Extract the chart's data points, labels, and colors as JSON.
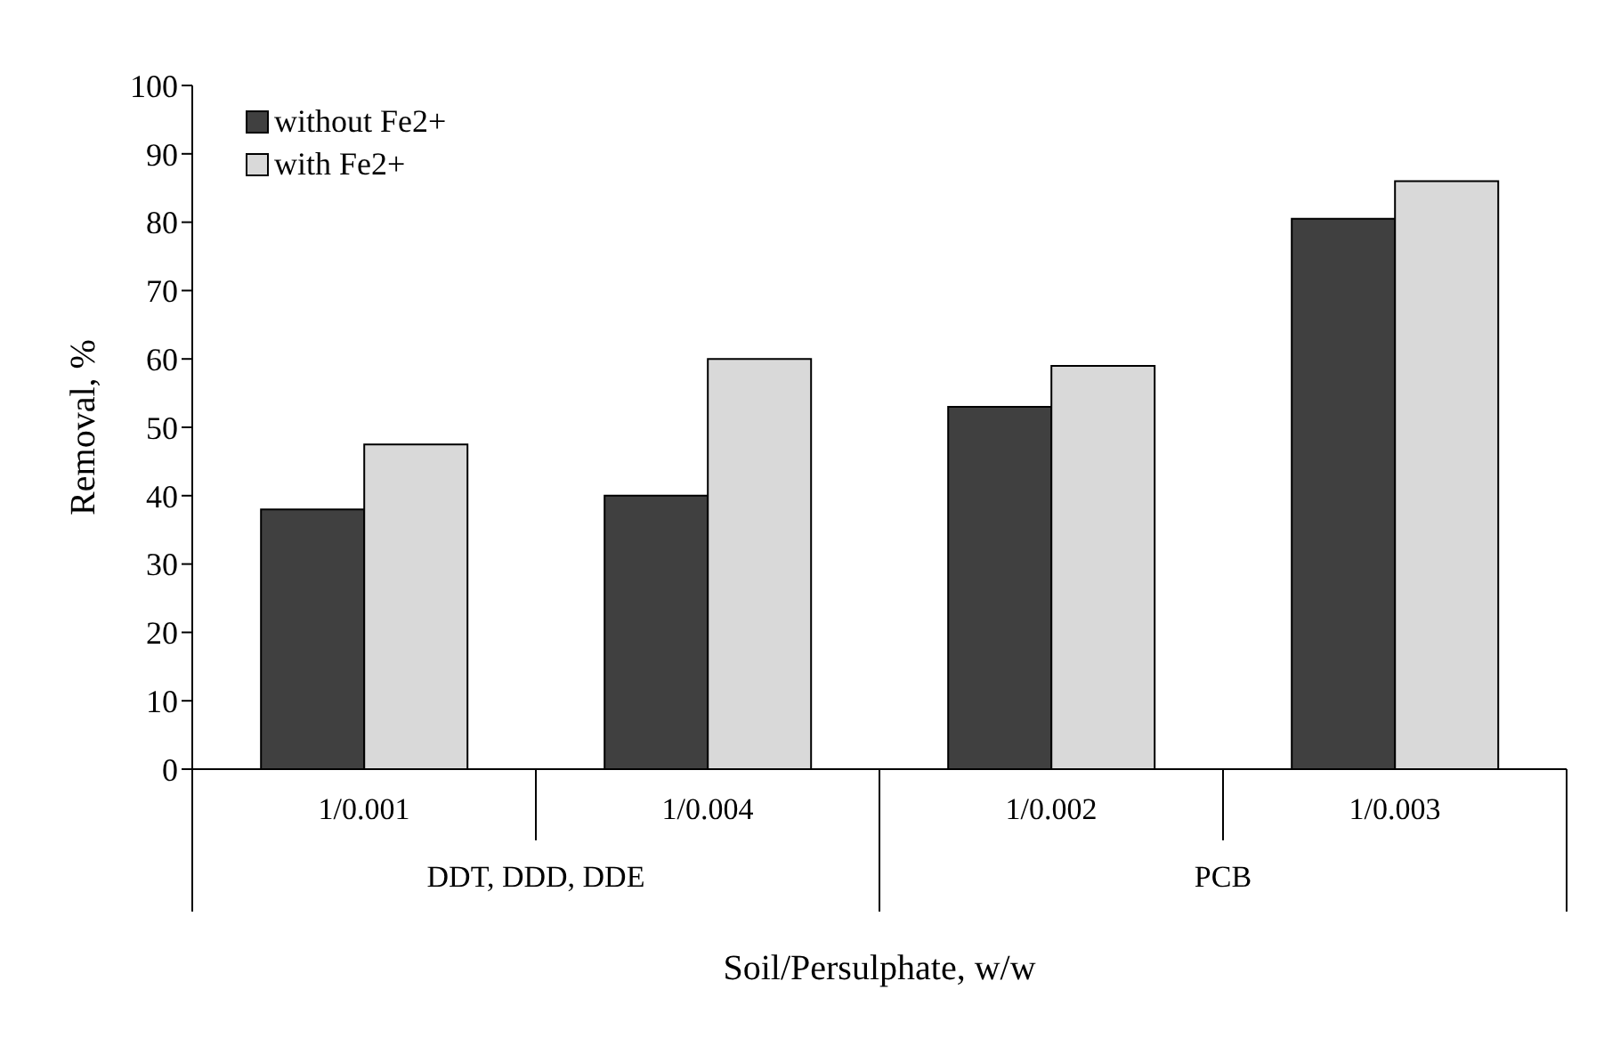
{
  "chart_data": {
    "type": "bar",
    "xlabel": "Soil/Persulphate, w/w",
    "ylabel": "Removal, %",
    "categories": [
      "1/0.001",
      "1/0.004",
      "1/0.002",
      "1/0.003"
    ],
    "series": [
      {
        "name": "without Fe2+",
        "color": "#404040",
        "values": [
          38,
          40,
          53,
          80.5
        ]
      },
      {
        "name": "with Fe2+",
        "color": "#d9d9d9",
        "values": [
          47.5,
          60,
          59,
          86
        ]
      }
    ],
    "annotations": [
      "DDT, DDD, DDE",
      "PCB"
    ],
    "ylim": [
      0,
      100
    ],
    "yticks": [
      0,
      10,
      20,
      30,
      40,
      50,
      60,
      70,
      80,
      90,
      100
    ],
    "legend": "top left"
  }
}
